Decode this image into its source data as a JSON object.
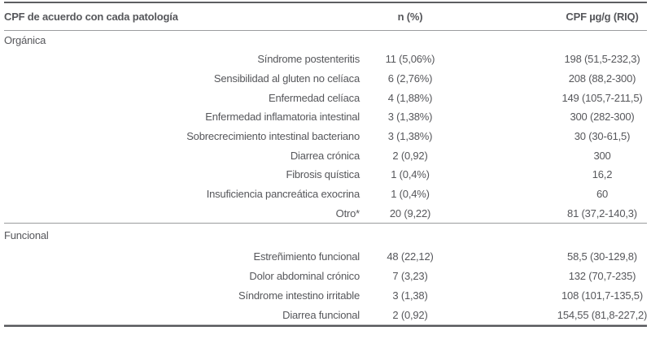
{
  "table": {
    "columns": [
      "CPF de acuerdo con cada patología",
      "n (%)",
      "CPF µg/g (RIQ)"
    ],
    "sections": [
      {
        "label": "Orgánica",
        "rows": [
          {
            "label": "Síndrome postenteritis",
            "n": "11 (5,06%)",
            "cpf": "198 (51,5-232,3)"
          },
          {
            "label": "Sensibilidad al gluten no celíaca",
            "n": "6 (2,76%)",
            "cpf": "208 (88,2-300)"
          },
          {
            "label": "Enfermedad celíaca",
            "n": "4 (1,88%)",
            "cpf": "149 (105,7-211,5)"
          },
          {
            "label": "Enfermedad inflamatoria intestinal",
            "n": "3 (1,38%)",
            "cpf": "300 (282-300)"
          },
          {
            "label": "Sobrecrecimiento intestinal bacteriano",
            "n": "3 (1,38%)",
            "cpf": "30 (30-61,5)"
          },
          {
            "label": "Diarrea crónica",
            "n": "2 (0,92)",
            "cpf": "300"
          },
          {
            "label": "Fibrosis quística",
            "n": "1 (0,4%)",
            "cpf": "16,2"
          },
          {
            "label": "Insuficiencia pancreática exocrina",
            "n": "1 (0,4%)",
            "cpf": "60"
          },
          {
            "label": "Otro*",
            "n": "20 (9,22)",
            "cpf": "81 (37,2-140,3)"
          }
        ]
      },
      {
        "label": "Funcional",
        "rows": [
          {
            "label": "Estreñimiento funcional",
            "n": "48 (22,12)",
            "cpf": "58,5 (30-129,8)"
          },
          {
            "label": "Dolor abdominal crónico",
            "n": "7 (3,23)",
            "cpf": "132 (70,7-235)"
          },
          {
            "label": "Síndrome intestino irritable",
            "n": "3 (1,38)",
            "cpf": "108 (101,7-135,5)"
          },
          {
            "label": "Diarrea funcional",
            "n": "2 (0,92)",
            "cpf": "154,55 (81,8-227,2)"
          }
        ]
      }
    ]
  },
  "colors": {
    "text": "#56575b",
    "rule_thin": "#9b9c9e",
    "rule_thick": "#5d5e61",
    "rule_bottom_light": "#b5b5b7",
    "rule_bottom_dark": "#55565a",
    "background": "#ffffff"
  }
}
